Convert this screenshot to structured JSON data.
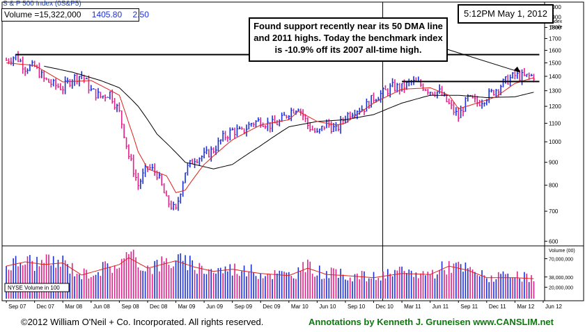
{
  "header": {
    "index_name": "S & P 500 Index",
    "index_symbol": "(0S&P5)",
    "volume": "Volume =15,322,000",
    "price": "1405.80",
    "change": "2.50"
  },
  "timestamp": "5:12PM May 1, 2012",
  "annotation": "Found support recently near its 50 DMA line and 2011 highs. Today the benchmark index is -10.9% off its 2007 all-time high.",
  "footer": {
    "copyright": "©2012 William O'Neil + Co. Incorporated. All rights reserved.",
    "annotations": "Annotations by Kenneth J. Gruneisen www.CANSLIM.net"
  },
  "colors": {
    "up_bar": "#1a2fd6",
    "down_bar": "#e0218a",
    "ma50": "#e0201a",
    "ma200": "#000000",
    "footer_green": "#0b7a0b"
  },
  "chart_data": [
    {
      "type": "line",
      "title": "S & P 500 Index",
      "ylabel": "Index Scale",
      "y_scale": "log",
      "ylim": [
        590,
        2050
      ],
      "y_ticks": [
        "2000",
        "1900",
        "1800",
        "1700",
        "1600",
        "1500",
        "1400",
        "1300",
        "1200",
        "1100",
        "1000",
        "900",
        "800",
        "700",
        "600"
      ],
      "x_tick_labels": [
        "Sep 07",
        "Dec 07",
        "Mar 08",
        "Jun 08",
        "Sep 08",
        "Dec 08",
        "Mar 09",
        "Jun 09",
        "Sep 09",
        "Dec 09",
        "Mar 10",
        "Jun 10",
        "Sep 10",
        "Dec 10",
        "Mar 11",
        "Jun 11",
        "Sep 11",
        "Dec 11",
        "Mar 12",
        "Jun 12"
      ],
      "price_anchors": [
        [
          "Sep 07",
          1520
        ],
        [
          "Oct 07",
          1555
        ],
        [
          "Nov 07",
          1465
        ],
        [
          "Dec 07",
          1470
        ],
        [
          "Jan 08",
          1380
        ],
        [
          "Feb 08",
          1340
        ],
        [
          "Mar 08",
          1320
        ],
        [
          "Apr 08",
          1385
        ],
        [
          "May 08",
          1410
        ],
        [
          "Jun 08",
          1300
        ],
        [
          "Jul 08",
          1260
        ],
        [
          "Aug 08",
          1285
        ],
        [
          "Sep 08",
          1160
        ],
        [
          "Oct 08",
          930
        ],
        [
          "Nov 08",
          800
        ],
        [
          "Dec 08",
          880
        ],
        [
          "Jan 09",
          850
        ],
        [
          "Feb 09",
          740
        ],
        [
          "Mar 09",
          700
        ],
        [
          "Apr 09",
          860
        ],
        [
          "May 09",
          920
        ],
        [
          "Jun 09",
          930
        ],
        [
          "Jul 09",
          960
        ],
        [
          "Aug 09",
          1020
        ],
        [
          "Sep 09",
          1060
        ],
        [
          "Oct 09",
          1050
        ],
        [
          "Nov 09",
          1100
        ],
        [
          "Dec 09",
          1115
        ],
        [
          "Jan 10",
          1090
        ],
        [
          "Feb 10",
          1105
        ],
        [
          "Mar 10",
          1165
        ],
        [
          "Apr 10",
          1200
        ],
        [
          "May 10",
          1090
        ],
        [
          "Jun 10",
          1040
        ],
        [
          "Jul 10",
          1100
        ],
        [
          "Aug 10",
          1060
        ],
        [
          "Sep 10",
          1140
        ],
        [
          "Oct 10",
          1180
        ],
        [
          "Nov 10",
          1190
        ],
        [
          "Dec 10",
          1255
        ],
        [
          "Jan 11",
          1285
        ],
        [
          "Feb 11",
          1325
        ],
        [
          "Mar 11",
          1320
        ],
        [
          "Apr 11",
          1360
        ],
        [
          "May 11",
          1340
        ],
        [
          "Jun 11",
          1300
        ],
        [
          "Jul 11",
          1290
        ],
        [
          "Aug 11",
          1210
        ],
        [
          "Sep 11",
          1135
        ],
        [
          "Oct 11",
          1250
        ],
        [
          "Nov 11",
          1220
        ],
        [
          "Dec 11",
          1260
        ],
        [
          "Jan 12",
          1310
        ],
        [
          "Feb 12",
          1365
        ],
        [
          "Mar 12",
          1405
        ],
        [
          "Apr 12",
          1395
        ],
        [
          "May 12",
          1405
        ]
      ],
      "ma50_anchors": [
        [
          "Sep 07",
          1500
        ],
        [
          "Dec 07",
          1480
        ],
        [
          "Mar 08",
          1360
        ],
        [
          "Jun 08",
          1370
        ],
        [
          "Sep 08",
          1270
        ],
        [
          "Oct 08",
          1100
        ],
        [
          "Nov 08",
          950
        ],
        [
          "Dec 08",
          870
        ],
        [
          "Feb 09",
          840
        ],
        [
          "Mar 09",
          770
        ],
        [
          "Apr 09",
          780
        ],
        [
          "Jun 09",
          890
        ],
        [
          "Sep 09",
          1010
        ],
        [
          "Dec 09",
          1090
        ],
        [
          "Mar 10",
          1120
        ],
        [
          "Apr 10",
          1170
        ],
        [
          "Jun 10",
          1110
        ],
        [
          "Aug 10",
          1090
        ],
        [
          "Sep 10",
          1100
        ],
        [
          "Dec 10",
          1220
        ],
        [
          "Mar 11",
          1310
        ],
        [
          "Jun 11",
          1320
        ],
        [
          "Aug 11",
          1270
        ],
        [
          "Sep 11",
          1185
        ],
        [
          "Nov 11",
          1220
        ],
        [
          "Jan 12",
          1260
        ],
        [
          "Mar 12",
          1350
        ],
        [
          "May 12",
          1390
        ]
      ],
      "ma200_anchors": [
        [
          "Jan 08",
          1475
        ],
        [
          "Apr 08",
          1430
        ],
        [
          "Jul 08",
          1370
        ],
        [
          "Sep 08",
          1320
        ],
        [
          "Nov 08",
          1200
        ],
        [
          "Jan 09",
          1040
        ],
        [
          "Apr 09",
          900
        ],
        [
          "Jul 09",
          870
        ],
        [
          "Sep 09",
          890
        ],
        [
          "Dec 09",
          980
        ],
        [
          "Mar 10",
          1080
        ],
        [
          "Jun 10",
          1110
        ],
        [
          "Sep 10",
          1120
        ],
        [
          "Dec 10",
          1150
        ],
        [
          "Mar 11",
          1220
        ],
        [
          "Jun 11",
          1270
        ],
        [
          "Sep 11",
          1270
        ],
        [
          "Dec 11",
          1255
        ],
        [
          "Mar 12",
          1260
        ],
        [
          "May 12",
          1290
        ]
      ],
      "reference_lines": [
        {
          "from": "Oct 07",
          "to": "May 12",
          "value": 1565
        },
        {
          "from": "Mar 11",
          "to": "May 12",
          "value": 1363
        }
      ]
    },
    {
      "type": "bar",
      "title": "NYSE Volume in 100",
      "ylabel": "Volume (00)",
      "y_ticks": [
        "70,000,000",
        "38,000,000",
        "20,000,000"
      ],
      "ylim": [
        0,
        90000000
      ],
      "volume_anchors": [
        [
          "Sep 07",
          62000000
        ],
        [
          "Nov 07",
          70000000
        ],
        [
          "Jan 08",
          65000000
        ],
        [
          "Mar 08",
          68000000
        ],
        [
          "May 08",
          45000000
        ],
        [
          "Jul 08",
          55000000
        ],
        [
          "Sep 08",
          65000000
        ],
        [
          "Oct 08",
          78000000
        ],
        [
          "Dec 08",
          58000000
        ],
        [
          "Mar 09",
          72000000
        ],
        [
          "May 09",
          60000000
        ],
        [
          "Jul 09",
          52000000
        ],
        [
          "Sep 09",
          56000000
        ],
        [
          "Dec 09",
          48000000
        ],
        [
          "Mar 10",
          44000000
        ],
        [
          "May 10",
          58000000
        ],
        [
          "Jul 10",
          46000000
        ],
        [
          "Sep 10",
          44000000
        ],
        [
          "Dec 10",
          40000000
        ],
        [
          "Mar 11",
          48000000
        ],
        [
          "Jun 11",
          46000000
        ],
        [
          "Aug 11",
          62000000
        ],
        [
          "Oct 11",
          54000000
        ],
        [
          "Dec 11",
          40000000
        ],
        [
          "Mar 12",
          40000000
        ],
        [
          "May 12",
          38000000
        ]
      ]
    }
  ]
}
